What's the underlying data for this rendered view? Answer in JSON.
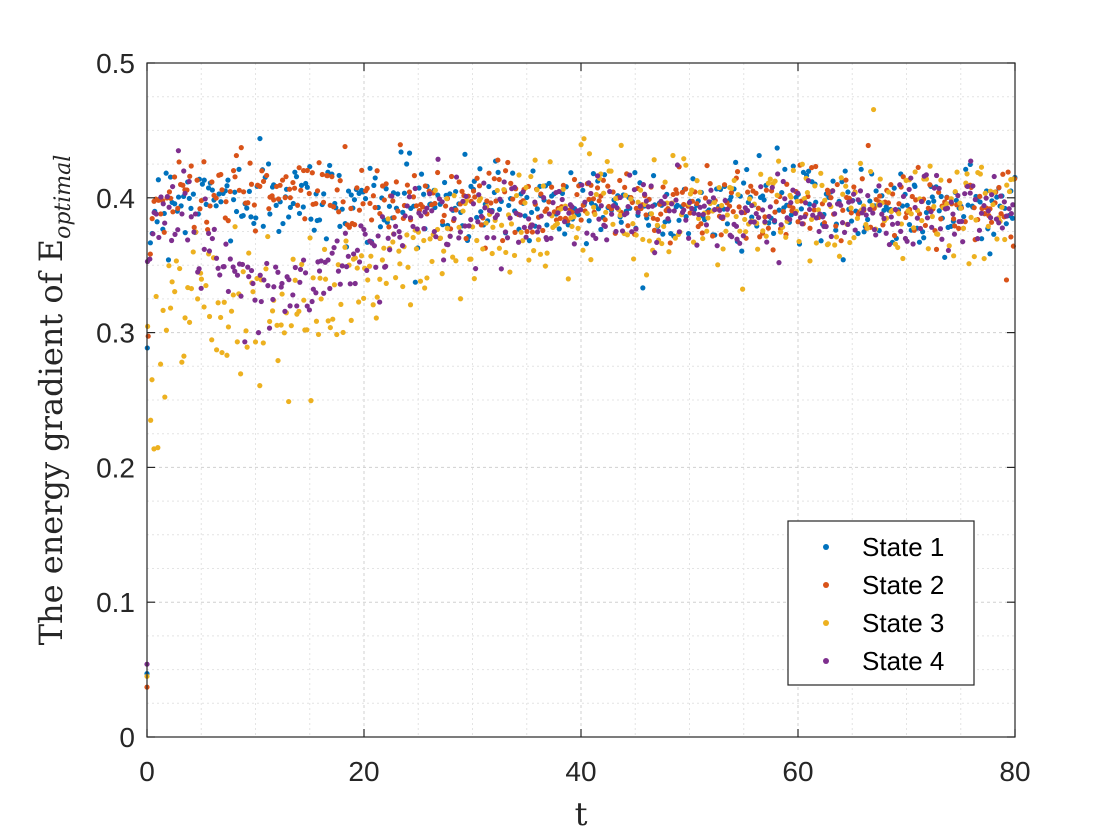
{
  "chart_data": {
    "type": "scatter",
    "title": "",
    "xlabel": "t",
    "ylabel_prefix": "The energy gradient of E",
    "ylabel_subscript": "optimal",
    "xlim": [
      0,
      80
    ],
    "ylim": [
      0,
      0.5
    ],
    "x_ticks": [
      0,
      20,
      40,
      60,
      80
    ],
    "y_ticks": [
      0,
      0.1,
      0.2,
      0.3,
      0.4,
      0.5
    ],
    "x_tick_labels": [
      "0",
      "20",
      "40",
      "60",
      "80"
    ],
    "y_tick_labels": [
      "0",
      "0.1",
      "0.2",
      "0.3",
      "0.4",
      "0.5"
    ],
    "grid": "major and minor, dotted",
    "legend_position": "bottom-right",
    "series": [
      {
        "name": "State 1",
        "color": "#0072BD",
        "initial": {
          "x": 0,
          "y": 0.047
        },
        "noise": 0.015,
        "profile": [
          [
            0.1,
            0.33
          ],
          [
            0.5,
            0.39
          ],
          [
            2,
            0.4
          ],
          [
            80,
            0.393
          ]
        ]
      },
      {
        "name": "State 2",
        "color": "#D95319",
        "initial": {
          "x": 0,
          "y": 0.037
        },
        "noise": 0.014,
        "profile": [
          [
            0.1,
            0.3
          ],
          [
            0.5,
            0.4
          ],
          [
            10,
            0.405
          ],
          [
            20,
            0.402
          ],
          [
            30,
            0.398
          ],
          [
            80,
            0.393
          ]
        ]
      },
      {
        "name": "State 3",
        "color": "#EDB120",
        "initial": {
          "x": 0,
          "y": 0.045
        },
        "noise": 0.022,
        "profile": [
          [
            0.1,
            0.29
          ],
          [
            0.5,
            0.24
          ],
          [
            2,
            0.33
          ],
          [
            5,
            0.34
          ],
          [
            10,
            0.3
          ],
          [
            14,
            0.31
          ],
          [
            18,
            0.33
          ],
          [
            22,
            0.35
          ],
          [
            30,
            0.375
          ],
          [
            40,
            0.39
          ],
          [
            80,
            0.39
          ]
        ]
      },
      {
        "name": "State 4",
        "color": "#7E2F8E",
        "initial": {
          "x": 0,
          "y": 0.054
        },
        "noise": 0.016,
        "profile": [
          [
            0.1,
            0.37
          ],
          [
            1,
            0.39
          ],
          [
            3,
            0.4
          ],
          [
            6,
            0.36
          ],
          [
            10,
            0.33
          ],
          [
            14,
            0.33
          ],
          [
            18,
            0.35
          ],
          [
            22,
            0.37
          ],
          [
            30,
            0.385
          ],
          [
            40,
            0.39
          ],
          [
            80,
            0.39
          ]
        ]
      }
    ],
    "samples_per_series": 420
  }
}
